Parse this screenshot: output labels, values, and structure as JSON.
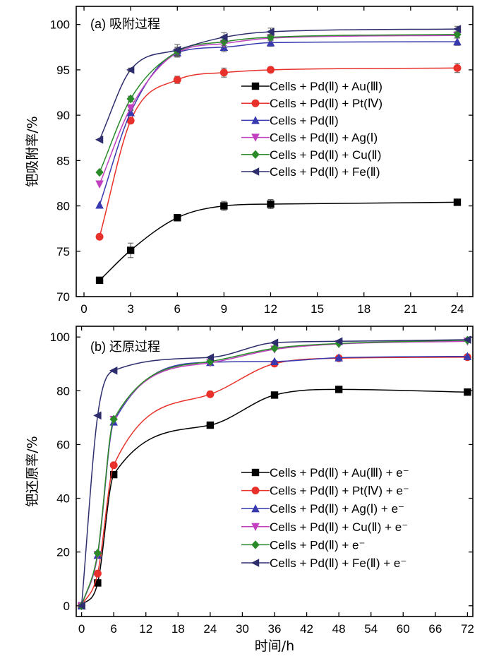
{
  "chart_data": [
    {
      "type": "line",
      "title": "(a) 吸附过程",
      "xlabel": "",
      "ylabel": "钯吸附率/%",
      "xlim": [
        -0.5,
        25
      ],
      "ylim": [
        70,
        102
      ],
      "xticks": [
        0,
        3,
        6,
        9,
        12,
        15,
        18,
        21,
        24
      ],
      "yticks": [
        70,
        75,
        80,
        85,
        90,
        95,
        100
      ],
      "grid": false,
      "legend": "center-right",
      "series": [
        {
          "name": "Cells + Pd(Ⅱ) + Au(Ⅲ)",
          "color": "#000000",
          "marker": "square",
          "x": [
            1,
            3,
            6,
            9,
            12,
            24
          ],
          "y": [
            71.8,
            75.1,
            78.7,
            80.0,
            80.2,
            80.4
          ],
          "err": [
            0,
            0.8,
            0.3,
            0.5,
            0.5,
            0.3
          ]
        },
        {
          "name": "Cells + Pd(Ⅱ) + Pt(Ⅳ)",
          "color": "#e8312a",
          "marker": "circle",
          "x": [
            1,
            3,
            6,
            9,
            12,
            24
          ],
          "y": [
            76.6,
            89.4,
            93.9,
            94.7,
            95.0,
            95.2
          ],
          "err": [
            0,
            0.3,
            0.4,
            0.5,
            0.3,
            0.5
          ]
        },
        {
          "name": "Cells + Pd(Ⅱ)",
          "color": "#3a3ab0",
          "marker": "triangle-up",
          "x": [
            1,
            3,
            6,
            9,
            12,
            24
          ],
          "y": [
            80.1,
            90.3,
            96.9,
            97.5,
            98.0,
            98.1
          ],
          "err": [
            0,
            0.3,
            0.5,
            0.5,
            0.4,
            0.4
          ]
        },
        {
          "name": "Cells + Pd(Ⅱ) + Ag(Ⅰ)",
          "color": "#c040c0",
          "marker": "triangle-down",
          "x": [
            1,
            3,
            6,
            9,
            12,
            24
          ],
          "y": [
            82.4,
            90.8,
            96.9,
            97.9,
            98.5,
            98.8
          ],
          "err": [
            0,
            0.3,
            0.4,
            0.4,
            0.3,
            0.3
          ]
        },
        {
          "name": "Cells + Pd(Ⅱ) + Cu(Ⅱ)",
          "color": "#2a8a2a",
          "marker": "diamond",
          "x": [
            1,
            3,
            6,
            9,
            12,
            24
          ],
          "y": [
            83.7,
            91.8,
            97.0,
            98.1,
            98.6,
            98.9
          ],
          "err": [
            0,
            0.3,
            0.5,
            0.4,
            0.3,
            0.3
          ]
        },
        {
          "name": "Cells + Pd(Ⅱ) + Fe(Ⅱ)",
          "color": "#2e2e6e",
          "marker": "triangle-left",
          "x": [
            1,
            3,
            6,
            9,
            12,
            24
          ],
          "y": [
            87.3,
            95.0,
            97.2,
            98.6,
            99.2,
            99.5
          ],
          "err": [
            0,
            0.2,
            0.6,
            0.5,
            0.4,
            0.3
          ]
        }
      ]
    },
    {
      "type": "line",
      "title": "(b) 还原过程",
      "xlabel": "时间/h",
      "ylabel": "钯还原率/%",
      "xlim": [
        -1,
        73
      ],
      "ylim": [
        -4,
        104
      ],
      "xticks": [
        0,
        6,
        12,
        18,
        24,
        30,
        36,
        42,
        48,
        54,
        60,
        66,
        72
      ],
      "yticks": [
        0,
        20,
        40,
        60,
        80,
        100
      ],
      "grid": false,
      "legend": "lower-right",
      "series": [
        {
          "name": "Cells + Pd(Ⅱ) + Au(Ⅲ) + e⁻",
          "color": "#000000",
          "marker": "square",
          "x": [
            0,
            3,
            6,
            24,
            36,
            48,
            72
          ],
          "y": [
            0,
            8.5,
            48.8,
            67.2,
            78.4,
            80.5,
            79.5
          ]
        },
        {
          "name": "Cells + Pd(Ⅱ) + Pt(Ⅳ) + e⁻",
          "color": "#e8312a",
          "marker": "circle",
          "x": [
            0,
            3,
            6,
            24,
            36,
            48,
            72
          ],
          "y": [
            0,
            12.0,
            52.3,
            78.7,
            90.1,
            92.1,
            92.5
          ]
        },
        {
          "name": "Cells + Pd(Ⅱ) + Ag(Ⅰ) + e⁻",
          "color": "#3a3ab0",
          "marker": "triangle-up",
          "x": [
            0,
            3,
            6,
            24,
            36,
            48,
            72
          ],
          "y": [
            0,
            18.8,
            68.4,
            90.6,
            90.9,
            92.3,
            92.8
          ]
        },
        {
          "name": "Cells + Pd(Ⅱ) + Cu(Ⅱ) + e⁻",
          "color": "#c040c0",
          "marker": "triangle-down",
          "x": [
            0,
            3,
            6,
            24,
            36,
            48,
            72
          ],
          "y": [
            0,
            19.0,
            69.3,
            90.4,
            95.4,
            97.4,
            98.4
          ]
        },
        {
          "name": "Cells + Pd(Ⅱ) + e⁻",
          "color": "#2a8a2a",
          "marker": "diamond",
          "x": [
            0,
            3,
            6,
            24,
            36,
            48,
            72
          ],
          "y": [
            0,
            19.6,
            69.4,
            90.9,
            95.8,
            97.6,
            98.8
          ]
        },
        {
          "name": "Cells + Pd(Ⅱ) + Fe(Ⅱ) + e⁻",
          "color": "#2e2e6e",
          "marker": "triangle-left",
          "x": [
            0,
            3,
            6,
            24,
            36,
            48,
            72
          ],
          "y": [
            0,
            70.8,
            87.5,
            92.4,
            97.9,
            98.4,
            99.0
          ]
        }
      ]
    }
  ]
}
